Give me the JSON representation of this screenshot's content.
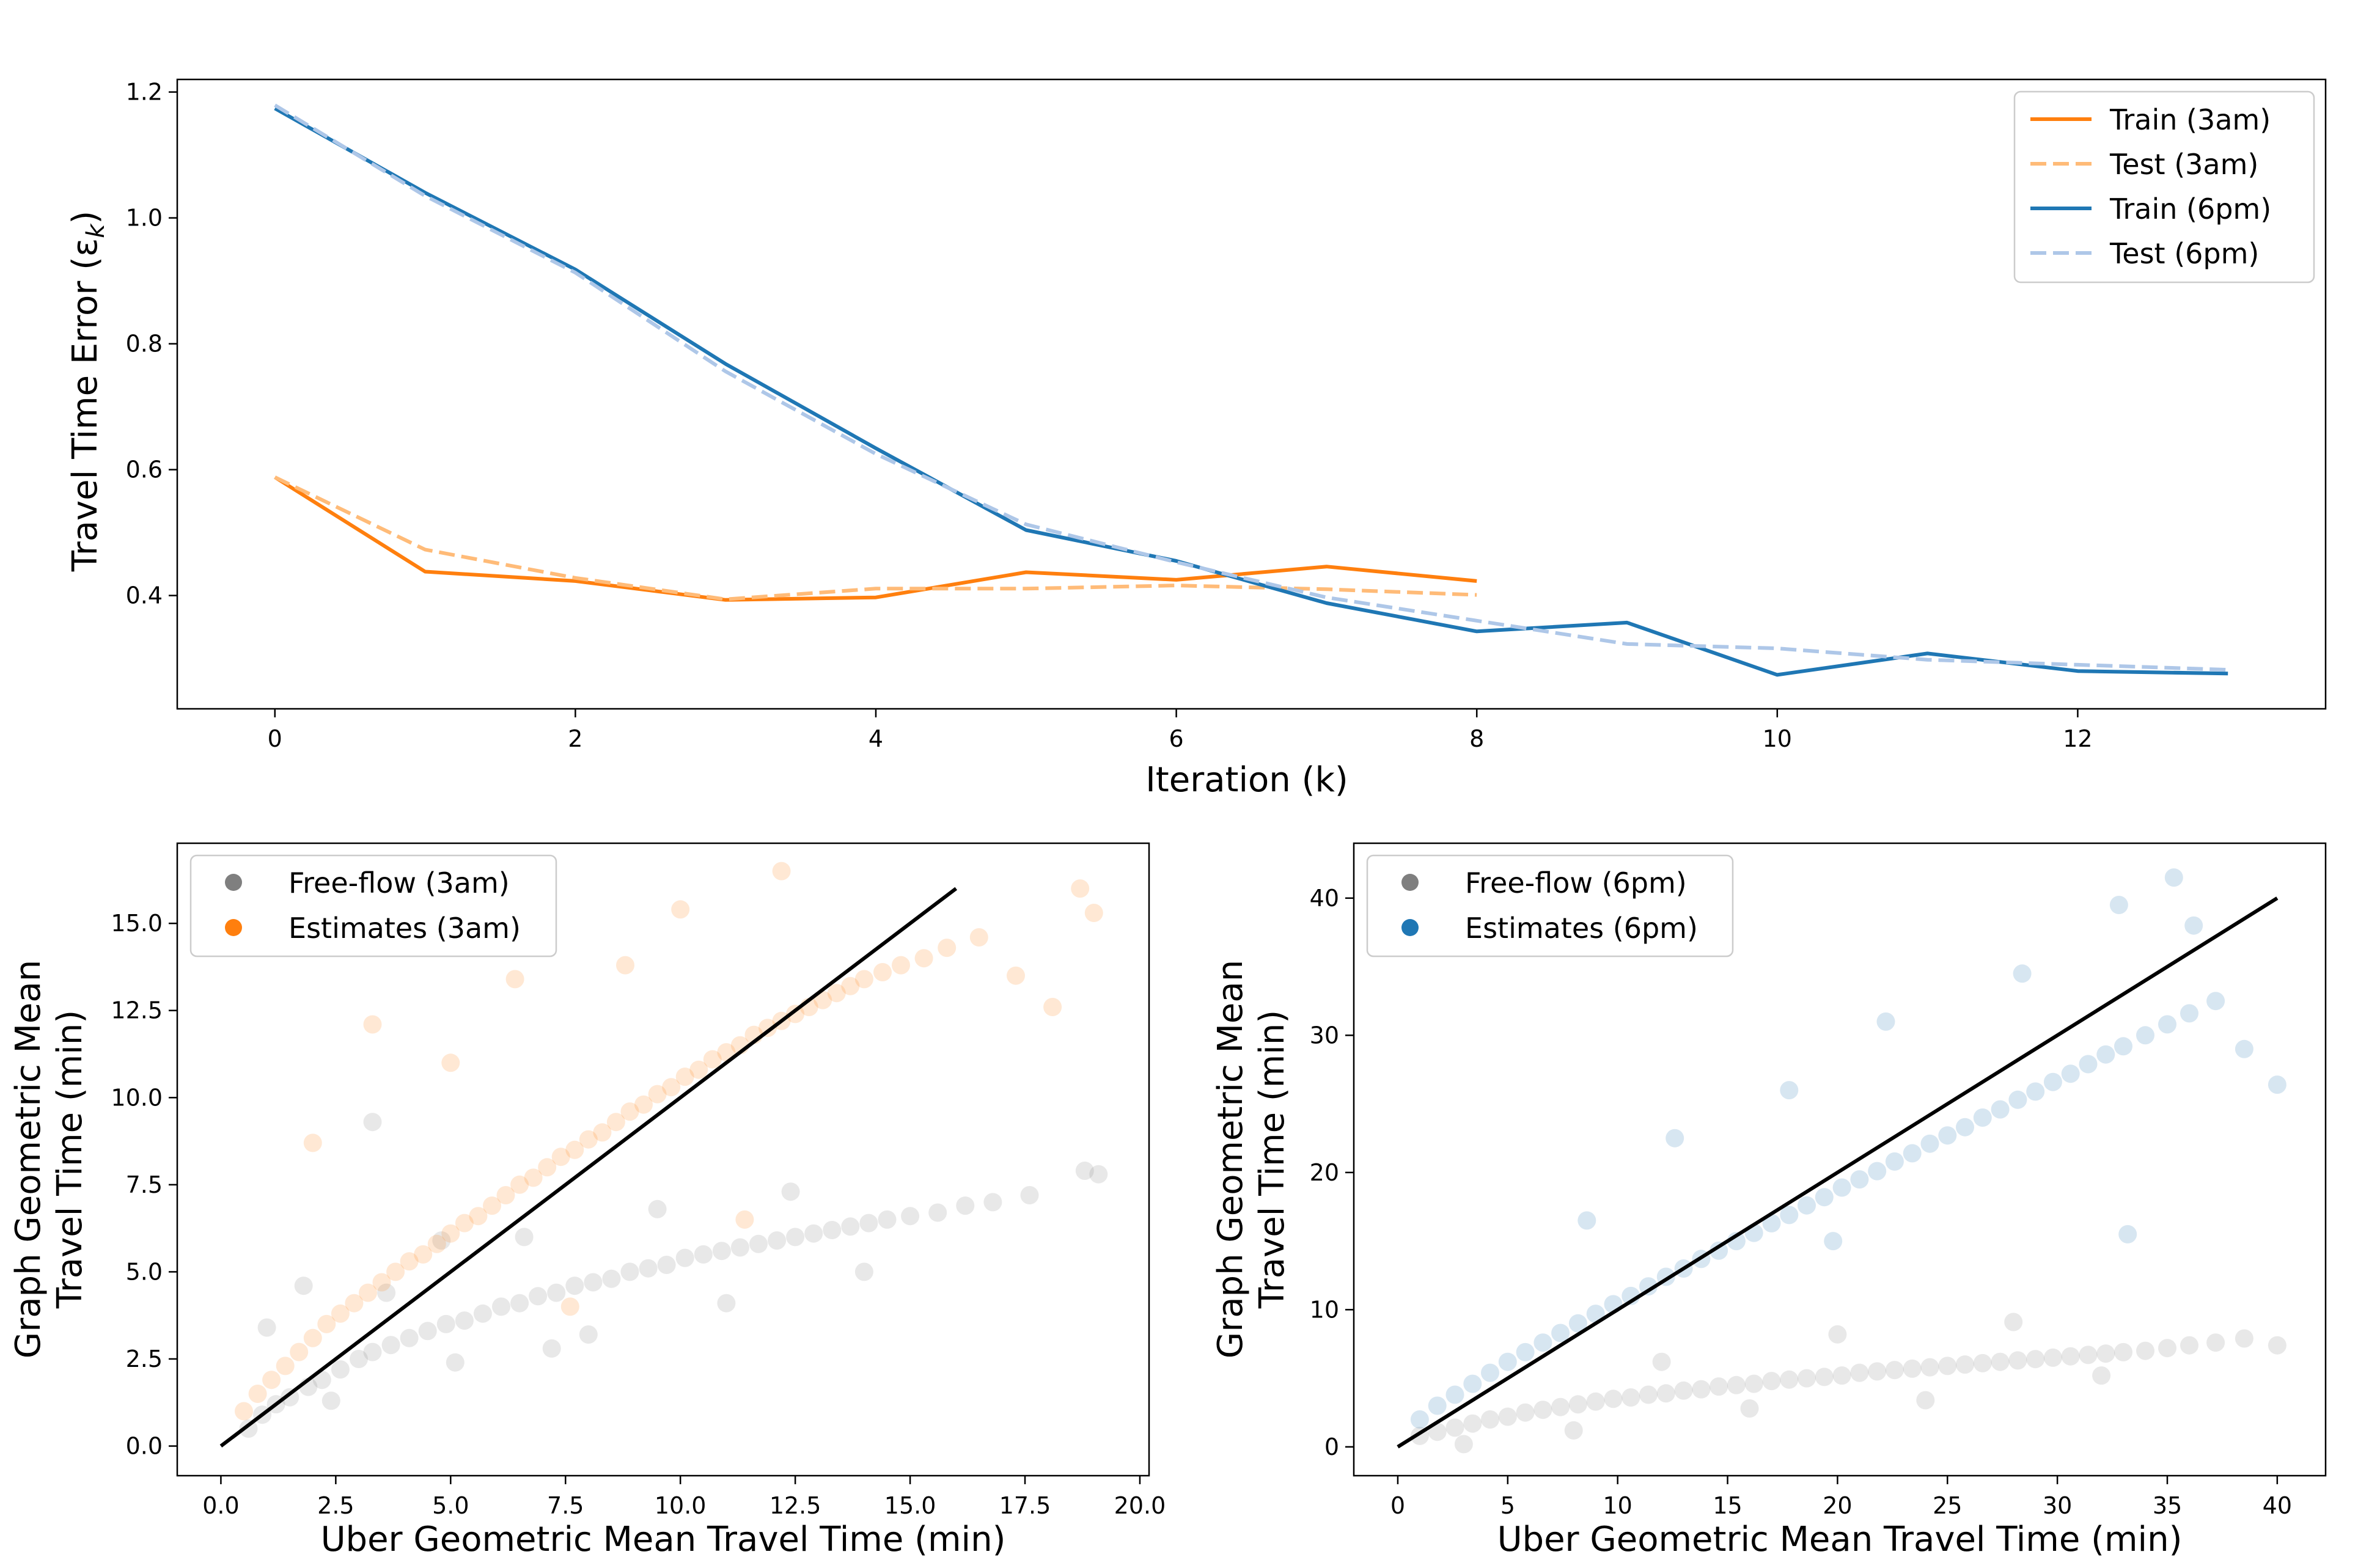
{
  "chart_data": [
    {
      "type": "line",
      "xlabel": "Iteration (k)",
      "ylabel": "Travel Time Error (ε",
      "ylabel_sub": "k",
      "ylabel_close": ")",
      "xlim": [
        -0.65,
        13.65
      ],
      "ylim": [
        0.22,
        1.22
      ],
      "xticks": [
        0,
        2,
        4,
        6,
        8,
        10,
        12
      ],
      "xtick_labels": [
        "0",
        "2",
        "4",
        "6",
        "8",
        "10",
        "12"
      ],
      "yticks": [
        0.4,
        0.6,
        0.8,
        1.0,
        1.2
      ],
      "ytick_labels": [
        "0.4",
        "0.6",
        "0.8",
        "1.0",
        "1.2"
      ],
      "legend_position": "top-right",
      "series": [
        {
          "name": "Train (3am)",
          "color": "#ff7f0e",
          "style": "solid",
          "x": [
            0,
            1,
            2,
            3,
            4,
            5,
            6,
            7,
            8
          ],
          "y": [
            0.588,
            0.438,
            0.423,
            0.393,
            0.397,
            0.437,
            0.425,
            0.446,
            0.423
          ]
        },
        {
          "name": "Test (3am)",
          "color": "#ffbb78",
          "style": "dashed",
          "x": [
            0,
            1,
            2,
            3,
            4,
            5,
            6,
            7,
            8
          ],
          "y": [
            0.588,
            0.473,
            0.428,
            0.394,
            0.411,
            0.411,
            0.416,
            0.41,
            0.401
          ]
        },
        {
          "name": "Train (6pm)",
          "color": "#1f77b4",
          "style": "solid",
          "x": [
            0,
            1,
            2,
            3,
            4,
            5,
            6,
            7,
            8,
            9,
            10,
            11,
            12,
            13
          ],
          "y": [
            1.174,
            1.04,
            0.918,
            0.768,
            0.634,
            0.504,
            0.455,
            0.388,
            0.343,
            0.357,
            0.274,
            0.308,
            0.28,
            0.276
          ]
        },
        {
          "name": "Test (6pm)",
          "color": "#aec7e8",
          "style": "dashed",
          "x": [
            0,
            1,
            2,
            3,
            4,
            5,
            6,
            7,
            8,
            9,
            10,
            11,
            12,
            13
          ],
          "y": [
            1.179,
            1.035,
            0.913,
            0.756,
            0.625,
            0.513,
            0.453,
            0.397,
            0.36,
            0.323,
            0.316,
            0.298,
            0.29,
            0.282
          ]
        }
      ]
    },
    {
      "type": "scatter",
      "xlabel": "Uber Geometric Mean Travel Time (min)",
      "ylabel": [
        "Graph Geometric Mean",
        "Travel Time (min)"
      ],
      "xlim": [
        -0.95,
        20.2
      ],
      "ylim": [
        -0.85,
        17.3
      ],
      "xticks": [
        0.0,
        2.5,
        5.0,
        7.5,
        10.0,
        12.5,
        15.0,
        17.5,
        20.0
      ],
      "xtick_labels": [
        "0.0",
        "2.5",
        "5.0",
        "7.5",
        "10.0",
        "12.5",
        "15.0",
        "17.5",
        "20.0"
      ],
      "yticks": [
        0.0,
        2.5,
        5.0,
        7.5,
        10.0,
        12.5,
        15.0
      ],
      "ytick_labels": [
        "0.0",
        "2.5",
        "5.0",
        "7.5",
        "10.0",
        "12.5",
        "15.0"
      ],
      "legend_position": "top-left",
      "reference_line": {
        "x": [
          0,
          16
        ],
        "y": [
          0,
          16
        ],
        "color": "#000000"
      },
      "series": [
        {
          "name": "Free-flow (3am)",
          "color": "#7f7f7f",
          "alpha": 0.18,
          "x": [
            0.6,
            0.9,
            1.2,
            1.5,
            1.9,
            2.2,
            2.6,
            3.0,
            3.3,
            3.7,
            4.1,
            4.5,
            4.9,
            5.3,
            5.7,
            6.1,
            6.5,
            6.9,
            7.3,
            7.7,
            8.1,
            8.5,
            8.9,
            9.3,
            9.7,
            10.1,
            10.5,
            10.9,
            11.3,
            11.7,
            12.1,
            12.5,
            12.9,
            13.3,
            13.7,
            14.1,
            14.5,
            15.0,
            15.6,
            16.2,
            16.8,
            17.6,
            18.8,
            19.1,
            1.0,
            2.4,
            3.6,
            5.1,
            6.6,
            8.0,
            9.5,
            11.0,
            12.4,
            14.0,
            3.3,
            1.8,
            4.8,
            7.2
          ],
          "y": [
            0.5,
            0.9,
            1.2,
            1.4,
            1.7,
            1.9,
            2.2,
            2.5,
            2.7,
            2.9,
            3.1,
            3.3,
            3.5,
            3.6,
            3.8,
            4.0,
            4.1,
            4.3,
            4.4,
            4.6,
            4.7,
            4.8,
            5.0,
            5.1,
            5.2,
            5.4,
            5.5,
            5.6,
            5.7,
            5.8,
            5.9,
            6.0,
            6.1,
            6.2,
            6.3,
            6.4,
            6.5,
            6.6,
            6.7,
            6.9,
            7.0,
            7.2,
            7.9,
            7.8,
            3.4,
            1.3,
            4.4,
            2.4,
            6.0,
            3.2,
            6.8,
            4.1,
            7.3,
            5.0,
            9.3,
            4.6,
            5.9,
            2.8
          ]
        },
        {
          "name": "Estimates (3am)",
          "color": "#ff7f0e",
          "alpha": 0.18,
          "x": [
            0.5,
            0.8,
            1.1,
            1.4,
            1.7,
            2.0,
            2.3,
            2.6,
            2.9,
            3.2,
            3.5,
            3.8,
            4.1,
            4.4,
            4.7,
            5.0,
            5.3,
            5.6,
            5.9,
            6.2,
            6.5,
            6.8,
            7.1,
            7.4,
            7.7,
            8.0,
            8.3,
            8.6,
            8.9,
            9.2,
            9.5,
            9.8,
            10.1,
            10.4,
            10.7,
            11.0,
            11.3,
            11.6,
            11.9,
            12.2,
            12.5,
            12.8,
            13.1,
            13.4,
            13.7,
            14.0,
            14.4,
            14.8,
            15.3,
            15.8,
            16.5,
            17.3,
            18.1,
            18.7,
            19.0,
            12.2,
            10.0,
            6.4,
            3.3,
            8.8,
            5.0,
            2.0,
            7.6,
            11.4
          ],
          "y": [
            1.0,
            1.5,
            1.9,
            2.3,
            2.7,
            3.1,
            3.5,
            3.8,
            4.1,
            4.4,
            4.7,
            5.0,
            5.3,
            5.5,
            5.8,
            6.1,
            6.4,
            6.6,
            6.9,
            7.2,
            7.5,
            7.7,
            8.0,
            8.3,
            8.5,
            8.8,
            9.0,
            9.3,
            9.6,
            9.8,
            10.1,
            10.3,
            10.6,
            10.8,
            11.1,
            11.3,
            11.5,
            11.8,
            12.0,
            12.2,
            12.4,
            12.6,
            12.8,
            13.0,
            13.2,
            13.4,
            13.6,
            13.8,
            14.0,
            14.3,
            14.6,
            13.5,
            12.6,
            16.0,
            15.3,
            16.5,
            15.4,
            13.4,
            12.1,
            13.8,
            11.0,
            8.7,
            4.0,
            6.5
          ]
        }
      ]
    },
    {
      "type": "scatter",
      "xlabel": "Uber Geometric Mean Travel Time (min)",
      "ylabel": [
        "Graph Geometric Mean",
        "Travel Time (min)"
      ],
      "xlim": [
        -2.0,
        42.2
      ],
      "ylim": [
        -2.1,
        44.0
      ],
      "xticks": [
        0,
        5,
        10,
        15,
        20,
        25,
        30,
        35,
        40
      ],
      "xtick_labels": [
        "0",
        "5",
        "10",
        "15",
        "20",
        "25",
        "30",
        "35",
        "40"
      ],
      "yticks": [
        0,
        10,
        20,
        30,
        40
      ],
      "ytick_labels": [
        "0",
        "10",
        "20",
        "30",
        "40"
      ],
      "legend_position": "top-left",
      "reference_line": {
        "x": [
          0,
          40
        ],
        "y": [
          0,
          40
        ],
        "color": "#000000"
      },
      "series": [
        {
          "name": "Free-flow (6pm)",
          "color": "#7f7f7f",
          "alpha": 0.18,
          "x": [
            1.0,
            1.8,
            2.6,
            3.4,
            4.2,
            5.0,
            5.8,
            6.6,
            7.4,
            8.2,
            9.0,
            9.8,
            10.6,
            11.4,
            12.2,
            13.0,
            13.8,
            14.6,
            15.4,
            16.2,
            17.0,
            17.8,
            18.6,
            19.4,
            20.2,
            21.0,
            21.8,
            22.6,
            23.4,
            24.2,
            25.0,
            25.8,
            26.6,
            27.4,
            28.2,
            29.0,
            29.8,
            30.6,
            31.4,
            32.2,
            33.0,
            34.0,
            35.0,
            36.0,
            37.2,
            38.5,
            40.0,
            12.0,
            20.0,
            28.0,
            8.0,
            16.0,
            24.0,
            32.0,
            3.0
          ],
          "y": [
            0.8,
            1.1,
            1.4,
            1.7,
            2.0,
            2.2,
            2.5,
            2.7,
            2.9,
            3.1,
            3.3,
            3.5,
            3.6,
            3.8,
            3.9,
            4.1,
            4.2,
            4.4,
            4.5,
            4.6,
            4.8,
            4.9,
            5.0,
            5.1,
            5.2,
            5.4,
            5.5,
            5.6,
            5.7,
            5.8,
            5.9,
            6.0,
            6.1,
            6.2,
            6.3,
            6.4,
            6.5,
            6.6,
            6.7,
            6.8,
            6.9,
            7.0,
            7.2,
            7.4,
            7.6,
            7.9,
            7.4,
            6.2,
            8.2,
            9.1,
            1.2,
            2.8,
            3.4,
            5.2,
            0.2
          ]
        },
        {
          "name": "Estimates (6pm)",
          "color": "#1f77b4",
          "alpha": 0.18,
          "x": [
            1.0,
            1.8,
            2.6,
            3.4,
            4.2,
            5.0,
            5.8,
            6.6,
            7.4,
            8.2,
            9.0,
            9.8,
            10.6,
            11.4,
            12.2,
            13.0,
            13.8,
            14.6,
            15.4,
            16.2,
            17.0,
            17.8,
            18.6,
            19.4,
            20.2,
            21.0,
            21.8,
            22.6,
            23.4,
            24.2,
            25.0,
            25.8,
            26.6,
            27.4,
            28.2,
            29.0,
            29.8,
            30.6,
            31.4,
            32.2,
            33.0,
            34.0,
            35.0,
            36.0,
            37.2,
            38.5,
            40.0,
            35.3,
            32.8,
            36.2,
            22.2,
            17.8,
            12.6,
            8.6,
            28.4,
            19.8,
            33.2
          ],
          "y": [
            2.0,
            3.0,
            3.8,
            4.6,
            5.4,
            6.2,
            6.9,
            7.6,
            8.3,
            9.0,
            9.7,
            10.4,
            11.0,
            11.7,
            12.4,
            13.0,
            13.7,
            14.3,
            15.0,
            15.6,
            16.3,
            16.9,
            17.6,
            18.2,
            18.9,
            19.5,
            20.1,
            20.8,
            21.4,
            22.1,
            22.7,
            23.3,
            24.0,
            24.6,
            25.3,
            25.9,
            26.6,
            27.2,
            27.9,
            28.6,
            29.2,
            30.0,
            30.8,
            31.6,
            32.5,
            29.0,
            26.4,
            41.5,
            39.5,
            38.0,
            31.0,
            26.0,
            22.5,
            16.5,
            34.5,
            15.0,
            15.5
          ]
        }
      ]
    }
  ],
  "legends": {
    "line": [
      "Train (3am)",
      "Test (3am)",
      "Train (6pm)",
      "Test (6pm)"
    ],
    "scatter_3am": [
      "Free-flow (3am)",
      "Estimates (3am)"
    ],
    "scatter_6pm": [
      "Free-flow (6pm)",
      "Estimates (6pm)"
    ]
  }
}
